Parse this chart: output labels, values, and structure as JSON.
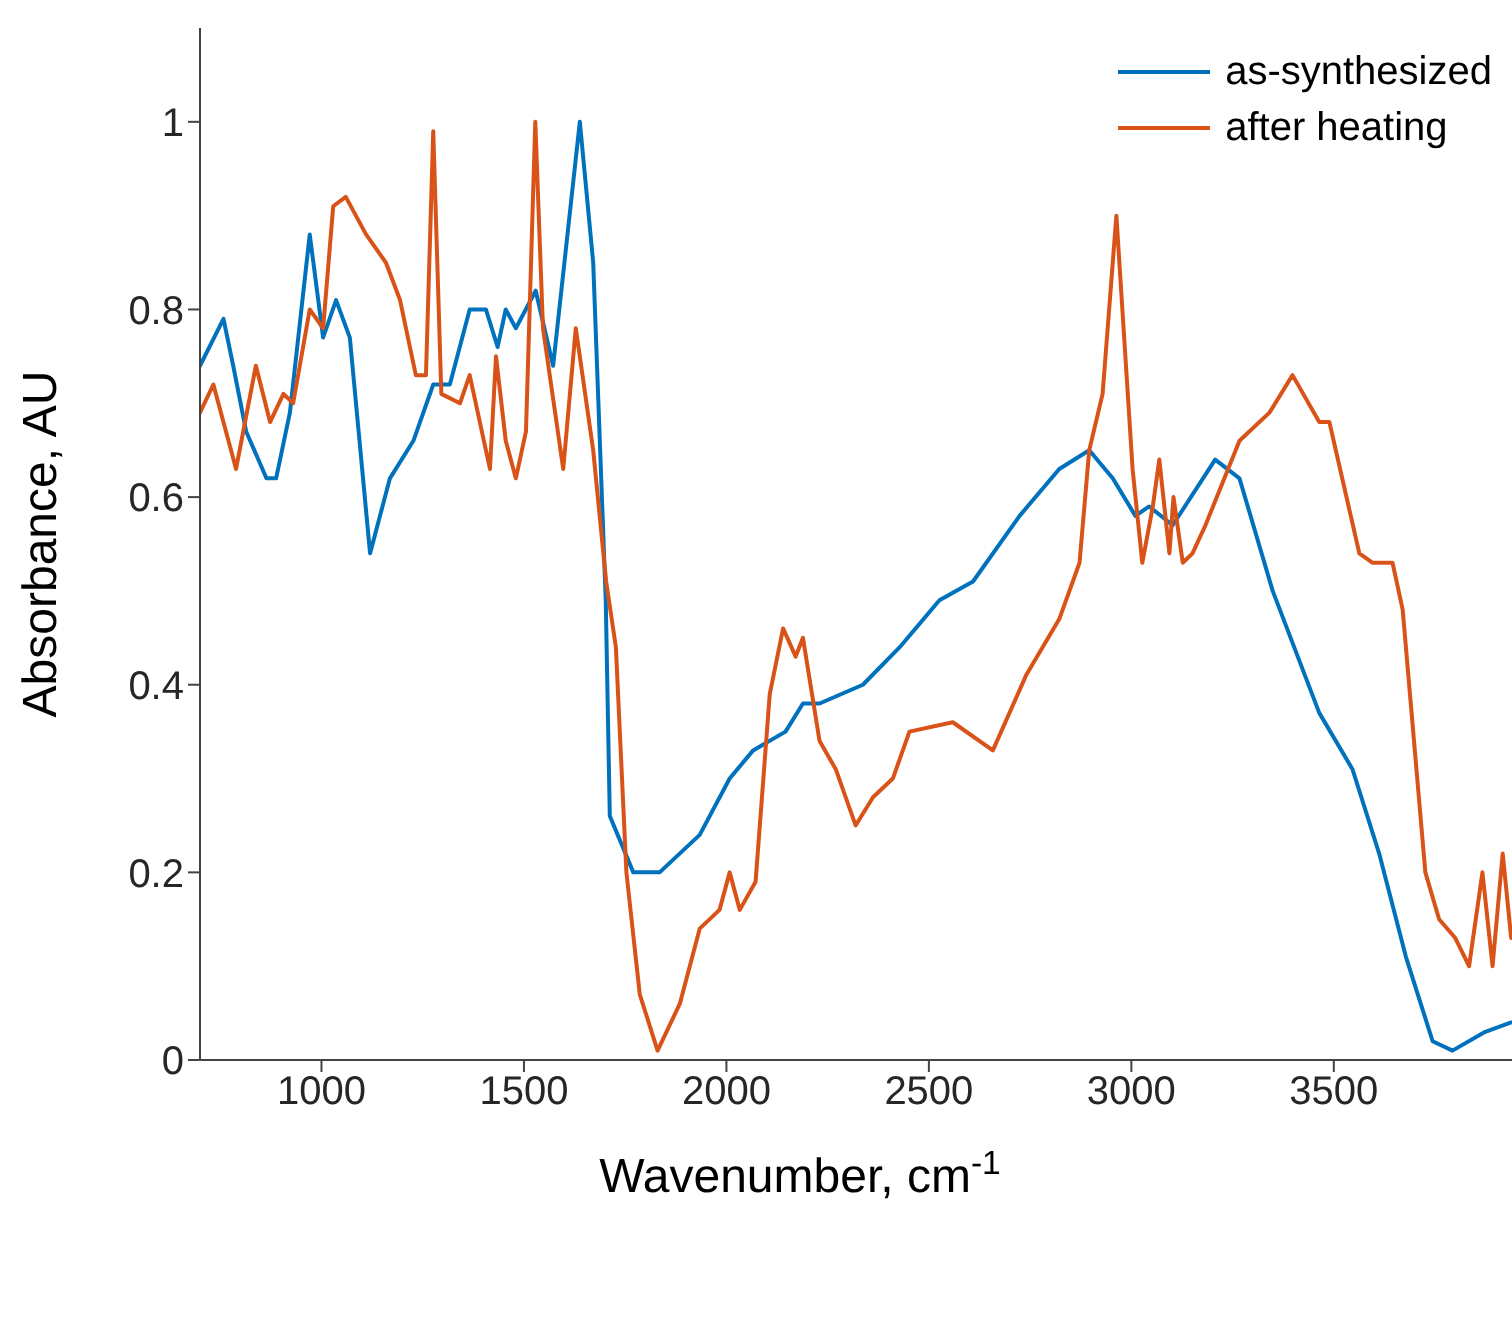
{
  "chart_data": {
    "type": "line",
    "xlabel": "Wavenumber, cm$^{-1}$",
    "ylabel": "Absorbance, AU",
    "xlim": [
      700,
      3940
    ],
    "xticks": [
      1000,
      1500,
      2000,
      2500,
      3000,
      3500
    ],
    "ylim": [
      0,
      1.1
    ],
    "yticks": [
      0,
      0.2,
      0.4,
      0.6,
      0.8,
      1
    ],
    "legend": "top right",
    "grid": false,
    "marker": "none",
    "line_style": "solid",
    "series": [
      {
        "name": "as-synthesized",
        "color": "#0072bd",
        "x": [
          700,
          758,
          782,
          814,
          864,
          888,
          922,
          971,
          1004,
          1036,
          1070,
          1120,
          1169,
          1227,
          1276,
          1317,
          1366,
          1406,
          1435,
          1455,
          1480,
          1529,
          1572,
          1638,
          1671,
          1702,
          1712,
          1770,
          1835,
          1934,
          2008,
          2066,
          2146,
          2189,
          2230,
          2337,
          2428,
          2526,
          2609,
          2724,
          2822,
          2896,
          2954,
          3010,
          3044,
          3102,
          3207,
          3267,
          3349,
          3464,
          3546,
          3612,
          3678,
          3744,
          3793,
          3874,
          3938
        ],
        "values": [
          0.74,
          0.79,
          0.74,
          0.67,
          0.62,
          0.62,
          0.69,
          0.88,
          0.77,
          0.81,
          0.77,
          0.54,
          0.62,
          0.66,
          0.72,
          0.72,
          0.8,
          0.8,
          0.76,
          0.8,
          0.78,
          0.82,
          0.74,
          1.0,
          0.85,
          0.49,
          0.26,
          0.2,
          0.2,
          0.24,
          0.3,
          0.33,
          0.35,
          0.38,
          0.38,
          0.4,
          0.44,
          0.49,
          0.51,
          0.58,
          0.63,
          0.65,
          0.62,
          0.58,
          0.59,
          0.57,
          0.64,
          0.62,
          0.5,
          0.37,
          0.31,
          0.22,
          0.11,
          0.02,
          0.01,
          0.03,
          0.04
        ]
      },
      {
        "name": "after heating",
        "color": "#d95319",
        "x": [
          700,
          733,
          789,
          838,
          873,
          906,
          930,
          971,
          1004,
          1029,
          1060,
          1110,
          1159,
          1194,
          1233,
          1258,
          1276,
          1296,
          1342,
          1366,
          1416,
          1431,
          1455,
          1480,
          1505,
          1528,
          1547,
          1597,
          1628,
          1671,
          1703,
          1727,
          1753,
          1786,
          1830,
          1885,
          1934,
          1983,
          2008,
          2033,
          2072,
          2107,
          2140,
          2171,
          2189,
          2230,
          2270,
          2319,
          2362,
          2411,
          2452,
          2559,
          2658,
          2740,
          2822,
          2872,
          2896,
          2929,
          2963,
          3003,
          3027,
          3053,
          3069,
          3094,
          3104,
          3127,
          3151,
          3183,
          3267,
          3341,
          3398,
          3464,
          3489,
          3563,
          3596,
          3645,
          3670,
          3694,
          3726,
          3760,
          3800,
          3834,
          3867,
          3892,
          3917,
          3938
        ],
        "values": [
          0.69,
          0.72,
          0.63,
          0.74,
          0.68,
          0.71,
          0.7,
          0.8,
          0.78,
          0.91,
          0.92,
          0.88,
          0.85,
          0.81,
          0.73,
          0.73,
          0.99,
          0.71,
          0.7,
          0.73,
          0.63,
          0.75,
          0.66,
          0.62,
          0.67,
          1.0,
          0.78,
          0.63,
          0.78,
          0.65,
          0.51,
          0.44,
          0.2,
          0.07,
          0.01,
          0.06,
          0.14,
          0.16,
          0.2,
          0.16,
          0.19,
          0.39,
          0.46,
          0.43,
          0.45,
          0.34,
          0.31,
          0.25,
          0.28,
          0.3,
          0.35,
          0.36,
          0.33,
          0.41,
          0.47,
          0.53,
          0.65,
          0.71,
          0.9,
          0.63,
          0.53,
          0.59,
          0.64,
          0.54,
          0.6,
          0.53,
          0.54,
          0.57,
          0.66,
          0.69,
          0.73,
          0.68,
          0.68,
          0.54,
          0.53,
          0.53,
          0.48,
          0.36,
          0.2,
          0.15,
          0.13,
          0.1,
          0.2,
          0.1,
          0.22,
          0.13
        ]
      }
    ]
  }
}
